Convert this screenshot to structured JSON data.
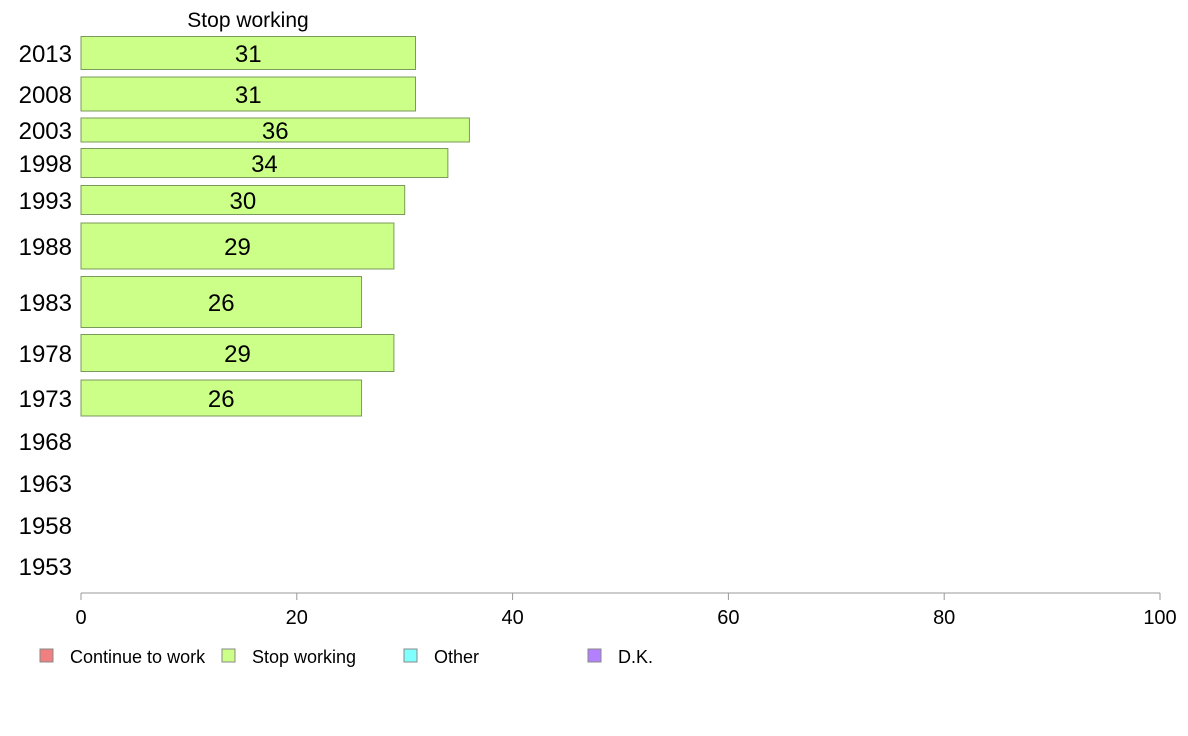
{
  "chart_data": {
    "type": "bar",
    "orientation": "horizontal",
    "title": "",
    "series_header": "Stop working",
    "xlabel": "",
    "ylabel": "",
    "xlim": [
      0,
      100
    ],
    "xticks": [
      "0",
      "20",
      "40",
      "60",
      "80",
      "100"
    ],
    "grid": false,
    "legend_position": "bottom",
    "categories": [
      "2013",
      "2008",
      "2003",
      "1998",
      "1993",
      "1988",
      "1983",
      "1978",
      "1973",
      "1968",
      "1963",
      "1958",
      "1953"
    ],
    "series": [
      {
        "name": "Stop working",
        "color": "#ccff88",
        "values": [
          31,
          31,
          36,
          34,
          30,
          29,
          26,
          29,
          26,
          null,
          null,
          null,
          null
        ],
        "value_labels": [
          "31",
          "31",
          "36",
          "34",
          "30",
          "29",
          "26",
          "29",
          "26",
          "",
          "",
          "",
          ""
        ]
      }
    ],
    "legend": [
      {
        "label": "Continue to work",
        "color": "#f08080"
      },
      {
        "label": "Stop working",
        "color": "#ccff88"
      },
      {
        "label": "Other",
        "color": "#80ffff"
      },
      {
        "label": "D.K.",
        "color": "#b380ff"
      }
    ]
  }
}
